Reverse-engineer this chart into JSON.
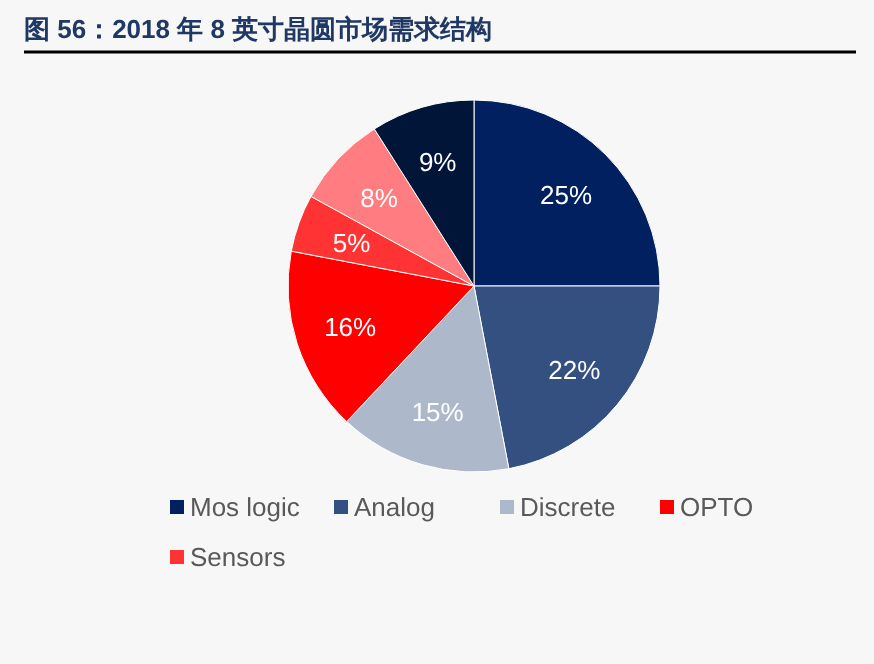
{
  "chart_data": {
    "type": "pie",
    "title": "图 56：2018 年 8 英寸晶圆市场需求结构",
    "categories": [
      "Mos logic",
      "Analog",
      "Discrete",
      "OPTO",
      "Sensors",
      null,
      null
    ],
    "values": [
      25,
      22,
      15,
      16,
      5,
      8,
      9
    ],
    "colors": [
      "#002060",
      "#335080",
      "#adb9ca",
      "#ff0000",
      "#ff3333",
      "#ff7c80",
      "#001538"
    ],
    "value_labels": [
      "25%",
      "22%",
      "15%",
      "16%",
      "5%",
      "8%",
      "9%"
    ],
    "legend": "bottom"
  }
}
